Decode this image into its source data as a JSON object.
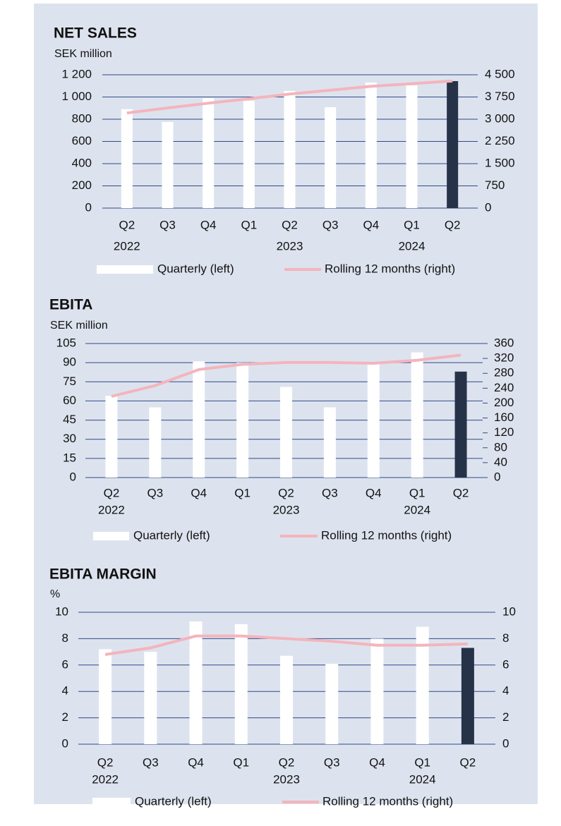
{
  "chart_data": [
    {
      "type": "bar",
      "title": "NET SALES",
      "y_label": "SEK million",
      "categories": [
        "Q2",
        "Q3",
        "Q4",
        "Q1",
        "Q2",
        "Q3",
        "Q4",
        "Q1",
        "Q2"
      ],
      "years": [
        "2022",
        null,
        null,
        null,
        "2023",
        null,
        null,
        "2024",
        null
      ],
      "series": [
        {
          "name": "Quarterly (left)",
          "type": "bar",
          "colors": [
            "#ffffff",
            "#ffffff",
            "#ffffff",
            "#ffffff",
            "#ffffff",
            "#ffffff",
            "#ffffff",
            "#ffffff",
            "#263248"
          ],
          "values": [
            890,
            775,
            990,
            965,
            1054,
            908,
            1130,
            1105,
            1143
          ]
        },
        {
          "name": "Rolling 12 months (right)",
          "type": "line",
          "axis": "y2",
          "color": "#f4b4bc",
          "values": [
            3210,
            3380,
            3540,
            3690,
            3850,
            3980,
            4110,
            4200,
            4290
          ]
        }
      ],
      "ylim": [
        0,
        1200
      ],
      "yticks": [
        0,
        200,
        400,
        600,
        800,
        {
          "value": 1000,
          "label": "1 000"
        },
        {
          "value": 1200,
          "label": "1 200"
        }
      ],
      "y2lim": [
        0,
        4500
      ],
      "y2ticks": [
        0,
        750,
        {
          "value": 1500,
          "label": "1 500"
        },
        {
          "value": 2250,
          "label": "2 250"
        },
        {
          "value": 3000,
          "label": "3 000"
        },
        {
          "value": 3750,
          "label": "3 750"
        },
        {
          "value": 4500,
          "label": "4 500"
        }
      ]
    },
    {
      "type": "bar",
      "title": "EBITA",
      "y_label": "SEK million",
      "categories": [
        "Q2",
        "Q3",
        "Q4",
        "Q1",
        "Q2",
        "Q3",
        "Q4",
        "Q1",
        "Q2"
      ],
      "years": [
        "2022",
        null,
        null,
        null,
        "2023",
        null,
        null,
        "2024",
        null
      ],
      "series": [
        {
          "name": "Quarterly (left)",
          "type": "bar",
          "colors": [
            "#ffffff",
            "#ffffff",
            "#ffffff",
            "#ffffff",
            "#ffffff",
            "#ffffff",
            "#ffffff",
            "#ffffff",
            "#263248"
          ],
          "values": [
            64,
            55,
            91,
            90,
            71,
            55,
            89,
            98,
            83
          ]
        },
        {
          "name": "Rolling 12 months (right)",
          "type": "line",
          "axis": "y2",
          "color": "#f4b4bc",
          "values": [
            218,
            247,
            290,
            304,
            309,
            309,
            307,
            315,
            329
          ]
        }
      ],
      "ylim": [
        0,
        105
      ],
      "yticks": [
        0,
        15,
        30,
        45,
        60,
        75,
        90,
        105
      ],
      "y2lim": [
        0,
        360
      ],
      "y2ticks": [
        0,
        40,
        80,
        120,
        160,
        200,
        240,
        280,
        320,
        360
      ]
    },
    {
      "type": "bar",
      "title": "EBITA MARGIN",
      "y_label": "%",
      "categories": [
        "Q2",
        "Q3",
        "Q4",
        "Q1",
        "Q2",
        "Q3",
        "Q4",
        "Q1",
        "Q2"
      ],
      "years": [
        "2022",
        null,
        null,
        null,
        "2023",
        null,
        null,
        "2024",
        null
      ],
      "series": [
        {
          "name": "Quarterly (left)",
          "type": "bar",
          "colors": [
            "#ffffff",
            "#ffffff",
            "#ffffff",
            "#ffffff",
            "#ffffff",
            "#ffffff",
            "#ffffff",
            "#ffffff",
            "#263248"
          ],
          "values": [
            7.2,
            7.0,
            9.3,
            9.1,
            6.7,
            6.1,
            8.0,
            8.9,
            7.3
          ]
        },
        {
          "name": "Rolling 12 months (right)",
          "type": "line",
          "axis": "y2",
          "color": "#f4b4bc",
          "values": [
            6.8,
            7.3,
            8.2,
            8.2,
            8.0,
            7.8,
            7.5,
            7.5,
            7.6
          ]
        }
      ],
      "ylim": [
        0,
        10
      ],
      "yticks": [
        0,
        2,
        4,
        6,
        8,
        10
      ],
      "y2lim": [
        0,
        10
      ],
      "y2ticks": [
        0,
        2,
        4,
        6,
        8,
        10
      ]
    }
  ]
}
